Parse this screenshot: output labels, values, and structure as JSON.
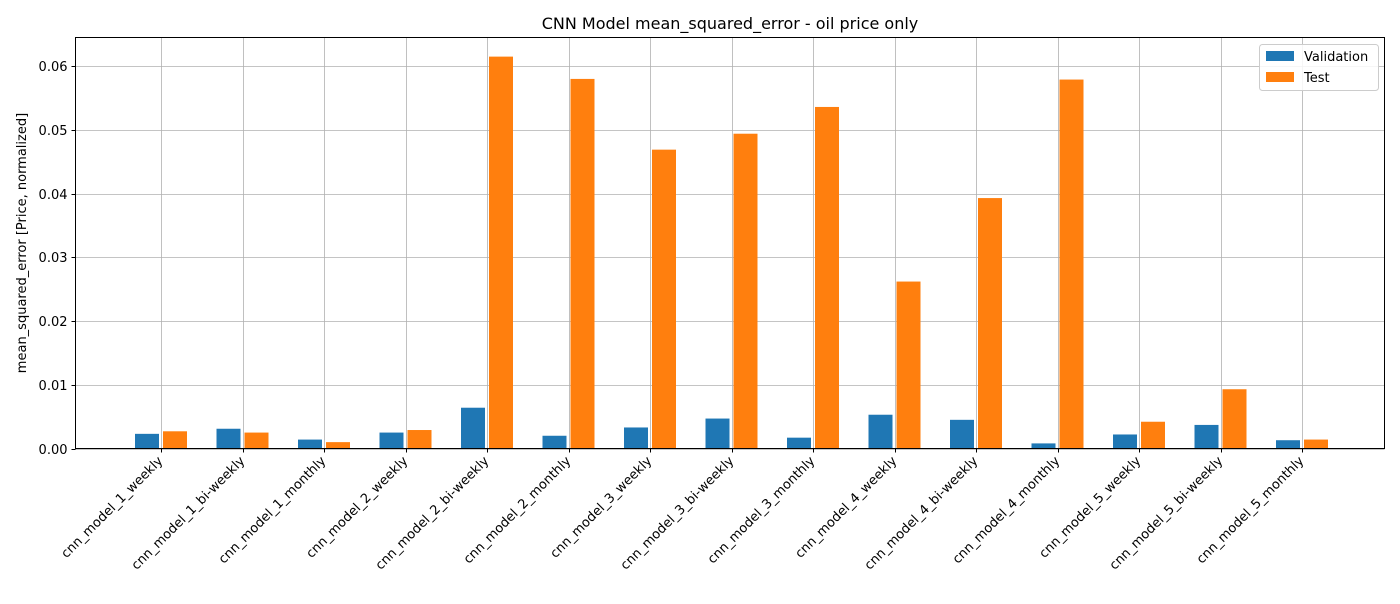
{
  "chart_data": {
    "type": "bar",
    "title": "CNN Model mean_squared_error - oil price only",
    "xlabel": "",
    "ylabel": "mean_squared_error [Price, normalized]",
    "ylim": [
      0,
      0.0645
    ],
    "yticks": [
      "0.00",
      "0.01",
      "0.02",
      "0.03",
      "0.04",
      "0.05",
      "0.06"
    ],
    "ytick_values": [
      0,
      0.01,
      0.02,
      0.03,
      0.04,
      0.05,
      0.06
    ],
    "grid": true,
    "legend_position": "top-right",
    "categories": [
      "cnn_model_1_weekly",
      "cnn_model_1_bi-weekly",
      "cnn_model_1_monthly",
      "cnn_model_2_weekly",
      "cnn_model_2_bi-weekly",
      "cnn_model_2_monthly",
      "cnn_model_3_weekly",
      "cnn_model_3_bi-weekly",
      "cnn_model_3_monthly",
      "cnn_model_4_weekly",
      "cnn_model_4_bi-weekly",
      "cnn_model_4_monthly",
      "cnn_model_5_weekly",
      "cnn_model_5_bi-weekly",
      "cnn_model_5_monthly"
    ],
    "series": [
      {
        "name": "Validation",
        "color": "#1f77b4",
        "values": [
          0.0023,
          0.0031,
          0.0014,
          0.0025,
          0.0064,
          0.002,
          0.0033,
          0.0047,
          0.0017,
          0.0053,
          0.0045,
          0.0008,
          0.0022,
          0.0037,
          0.0013
        ]
      },
      {
        "name": "Test",
        "color": "#ff7f0e",
        "values": [
          0.0027,
          0.0025,
          0.001,
          0.0029,
          0.0615,
          0.058,
          0.0469,
          0.0494,
          0.0536,
          0.0262,
          0.0393,
          0.0579,
          0.0042,
          0.0093,
          0.0014
        ]
      }
    ]
  }
}
